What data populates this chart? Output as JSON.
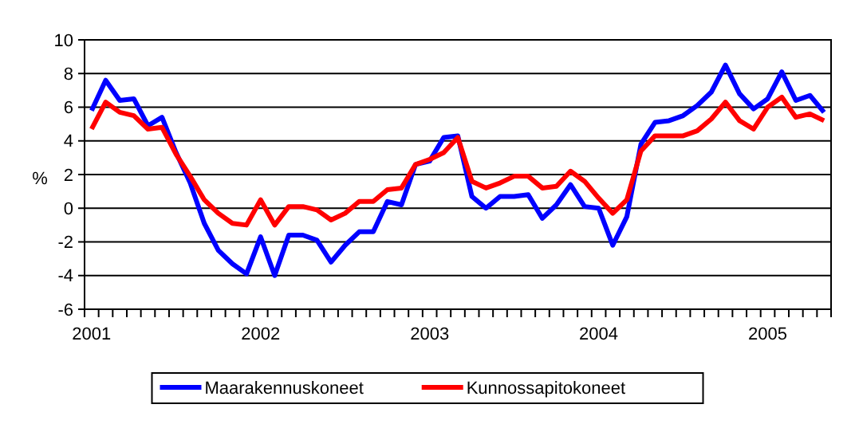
{
  "chart_data": {
    "type": "line",
    "ylabel": "%",
    "categories": [
      "2001",
      null,
      null,
      null,
      null,
      null,
      null,
      null,
      null,
      null,
      null,
      null,
      "2002",
      null,
      null,
      null,
      null,
      null,
      null,
      null,
      null,
      null,
      null,
      null,
      "2003",
      null,
      null,
      null,
      null,
      null,
      null,
      null,
      null,
      null,
      null,
      null,
      "2004",
      null,
      null,
      null,
      null,
      null,
      null,
      null,
      null,
      null,
      null,
      null,
      "2005",
      null,
      null,
      null,
      null
    ],
    "series": [
      {
        "name": "Maarakennuskoneet",
        "color": "#0000ff",
        "values": [
          5.8,
          7.6,
          6.4,
          6.5,
          4.9,
          5.4,
          3.3,
          1.5,
          -0.9,
          -2.5,
          -3.3,
          -3.9,
          -1.7,
          -4.0,
          -1.6,
          -1.6,
          -1.9,
          -3.2,
          -2.2,
          -1.4,
          -1.4,
          0.4,
          0.2,
          2.6,
          2.8,
          4.2,
          4.3,
          0.7,
          0.0,
          0.7,
          0.7,
          0.8,
          -0.6,
          0.2,
          1.4,
          0.1,
          0.0,
          -2.2,
          -0.5,
          3.8,
          5.1,
          5.2,
          5.5,
          6.1,
          6.9,
          8.5,
          6.8,
          5.9,
          6.5,
          8.1,
          6.4,
          6.7,
          5.7
        ]
      },
      {
        "name": "Kunnossapitokoneet",
        "color": "#ff0000",
        "values": [
          4.7,
          6.3,
          5.7,
          5.5,
          4.7,
          4.8,
          3.2,
          1.9,
          0.5,
          -0.3,
          -0.9,
          -1.0,
          0.5,
          -1.0,
          0.1,
          0.1,
          -0.1,
          -0.7,
          -0.3,
          0.4,
          0.4,
          1.1,
          1.2,
          2.6,
          2.9,
          3.3,
          4.2,
          1.6,
          1.2,
          1.5,
          1.9,
          1.9,
          1.2,
          1.3,
          2.2,
          1.6,
          0.6,
          -0.3,
          0.5,
          3.4,
          4.3,
          4.3,
          4.3,
          4.6,
          5.3,
          6.3,
          5.2,
          4.7,
          6.0,
          6.6,
          5.4,
          5.6,
          5.2
        ]
      }
    ],
    "ylim": [
      -6,
      10
    ],
    "yticks": [
      -6,
      -4,
      -2,
      0,
      2,
      4,
      6,
      8,
      10
    ],
    "grid": "y",
    "legend": "bottom",
    "marker": "none",
    "line_style": "solid"
  }
}
